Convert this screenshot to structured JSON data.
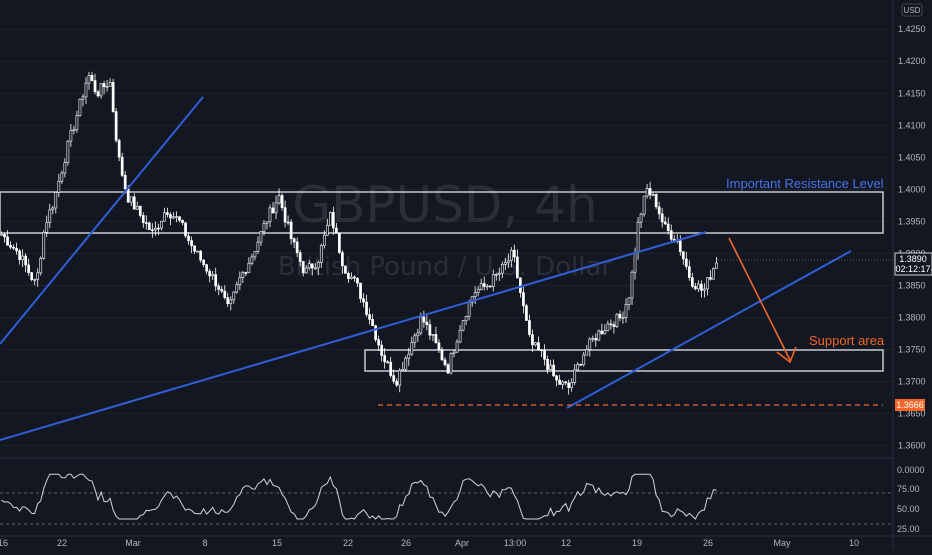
{
  "currency_badge": "USD",
  "watermark": {
    "symbol_line": "GBPUSD, 4h",
    "name_line": "British Pound / U.S. Dollar"
  },
  "annotations": {
    "resistance_label": "Important Resistance Level",
    "support_label": "Support area"
  },
  "price_axis": {
    "ticks": [
      1.425,
      1.42,
      1.415,
      1.41,
      1.405,
      1.4,
      1.395,
      1.39,
      1.385,
      1.38,
      1.375,
      1.37,
      1.365,
      1.36
    ]
  },
  "current_price": {
    "price": "1.3890",
    "countdown": "02:12:17"
  },
  "support_price": {
    "price": "1.3666"
  },
  "time_axis": {
    "labels": [
      "16",
      "22",
      "Mar",
      "8",
      "15",
      "22",
      "26",
      "Apr",
      "13:00",
      "12",
      "19",
      "26",
      "May",
      "10"
    ]
  },
  "rsi_axis": {
    "ticks": [
      "0.0000",
      "75.00",
      "50.00",
      "25.00"
    ],
    "levels": [
      70,
      30
    ]
  },
  "colors": {
    "background": "#131722",
    "candle": "#ffffff",
    "trendline": "#2f5ed6",
    "zone": "#b2b5be",
    "support_dash": "#f5662a",
    "arrow": "#f5662a",
    "rsi_line": "#d1d4dc"
  },
  "chart_data": {
    "type": "candlestick",
    "symbol": "GBPUSD",
    "timeframe": "4h",
    "ylim": [
      1.359,
      1.428
    ],
    "close_path": [
      {
        "t": 0.0,
        "p": 1.393
      },
      {
        "t": 0.02,
        "p": 1.39
      },
      {
        "t": 0.04,
        "p": 1.385
      },
      {
        "t": 0.05,
        "p": 1.3945
      },
      {
        "t": 0.06,
        "p": 1.398
      },
      {
        "t": 0.075,
        "p": 1.406
      },
      {
        "t": 0.09,
        "p": 1.413
      },
      {
        "t": 0.1,
        "p": 1.418
      },
      {
        "t": 0.11,
        "p": 1.415
      },
      {
        "t": 0.125,
        "p": 1.417
      },
      {
        "t": 0.135,
        "p": 1.405
      },
      {
        "t": 0.145,
        "p": 1.399
      },
      {
        "t": 0.16,
        "p": 1.396
      },
      {
        "t": 0.175,
        "p": 1.393
      },
      {
        "t": 0.19,
        "p": 1.397
      },
      {
        "t": 0.205,
        "p": 1.395
      },
      {
        "t": 0.22,
        "p": 1.391
      },
      {
        "t": 0.235,
        "p": 1.388
      },
      {
        "t": 0.25,
        "p": 1.385
      },
      {
        "t": 0.262,
        "p": 1.381
      },
      {
        "t": 0.275,
        "p": 1.386
      },
      {
        "t": 0.29,
        "p": 1.39
      },
      {
        "t": 0.305,
        "p": 1.395
      },
      {
        "t": 0.32,
        "p": 1.399
      },
      {
        "t": 0.335,
        "p": 1.392
      },
      {
        "t": 0.35,
        "p": 1.387
      },
      {
        "t": 0.365,
        "p": 1.389
      },
      {
        "t": 0.38,
        "p": 1.396
      },
      {
        "t": 0.395,
        "p": 1.388
      },
      {
        "t": 0.41,
        "p": 1.385
      },
      {
        "t": 0.425,
        "p": 1.38
      },
      {
        "t": 0.44,
        "p": 1.374
      },
      {
        "t": 0.455,
        "p": 1.37
      },
      {
        "t": 0.47,
        "p": 1.375
      },
      {
        "t": 0.485,
        "p": 1.38
      },
      {
        "t": 0.5,
        "p": 1.376
      },
      {
        "t": 0.515,
        "p": 1.372
      },
      {
        "t": 0.53,
        "p": 1.379
      },
      {
        "t": 0.545,
        "p": 1.384
      },
      {
        "t": 0.56,
        "p": 1.385
      },
      {
        "t": 0.575,
        "p": 1.387
      },
      {
        "t": 0.59,
        "p": 1.39
      },
      {
        "t": 0.6,
        "p": 1.383
      },
      {
        "t": 0.61,
        "p": 1.376
      },
      {
        "t": 0.625,
        "p": 1.374
      },
      {
        "t": 0.64,
        "p": 1.37
      },
      {
        "t": 0.655,
        "p": 1.369
      },
      {
        "t": 0.67,
        "p": 1.374
      },
      {
        "t": 0.685,
        "p": 1.377
      },
      {
        "t": 0.7,
        "p": 1.379
      },
      {
        "t": 0.715,
        "p": 1.38
      },
      {
        "t": 0.725,
        "p": 1.384
      },
      {
        "t": 0.735,
        "p": 1.395
      },
      {
        "t": 0.745,
        "p": 1.4
      },
      {
        "t": 0.755,
        "p": 1.398
      },
      {
        "t": 0.765,
        "p": 1.394
      },
      {
        "t": 0.78,
        "p": 1.392
      },
      {
        "t": 0.795,
        "p": 1.386
      },
      {
        "t": 0.81,
        "p": 1.384
      },
      {
        "t": 0.825,
        "p": 1.389
      }
    ]
  }
}
